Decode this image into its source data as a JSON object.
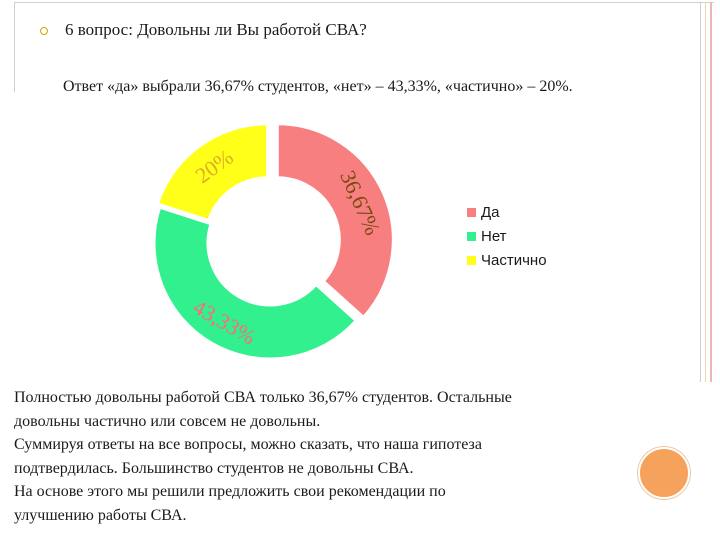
{
  "question": "6 вопрос: Довольны ли Вы работой СВА?",
  "answer": "Ответ «да» выбрали 36,67% студентов, «нет» – 43,33%, «частично» – 20%.",
  "summary_lines": [
    "Полностью довольны работой СВА только 36,67% студентов. Остальные",
    "довольны частично или совсем не довольны.",
    "Суммируя ответы на все вопросы, можно сказать, что наша гипотеза",
    "подтвердилась. Большинство студентов не довольны СВА.",
    "На основе этого мы решили предложить свои рекомендации по",
    "улучшению работы СВА."
  ],
  "colors": {
    "bullet": "#d9a300",
    "decor_circle": "#f5a35c"
  },
  "chart_data": {
    "type": "pie",
    "style": "doughnut-exploded",
    "categories": [
      "Да",
      "Нет",
      "Частично"
    ],
    "values": [
      36.67,
      43.33,
      20
    ],
    "data_labels": [
      "36,67%",
      "43,33%",
      "20%"
    ],
    "colors": [
      "#f77f7f",
      "#33f08f",
      "#ffff1a"
    ],
    "label_colors": [
      "#7a4a10",
      "#ff6a7a",
      "#d9b020"
    ],
    "legend": {
      "position": "right",
      "entries": [
        "Да",
        "Нет",
        "Частично"
      ]
    }
  }
}
